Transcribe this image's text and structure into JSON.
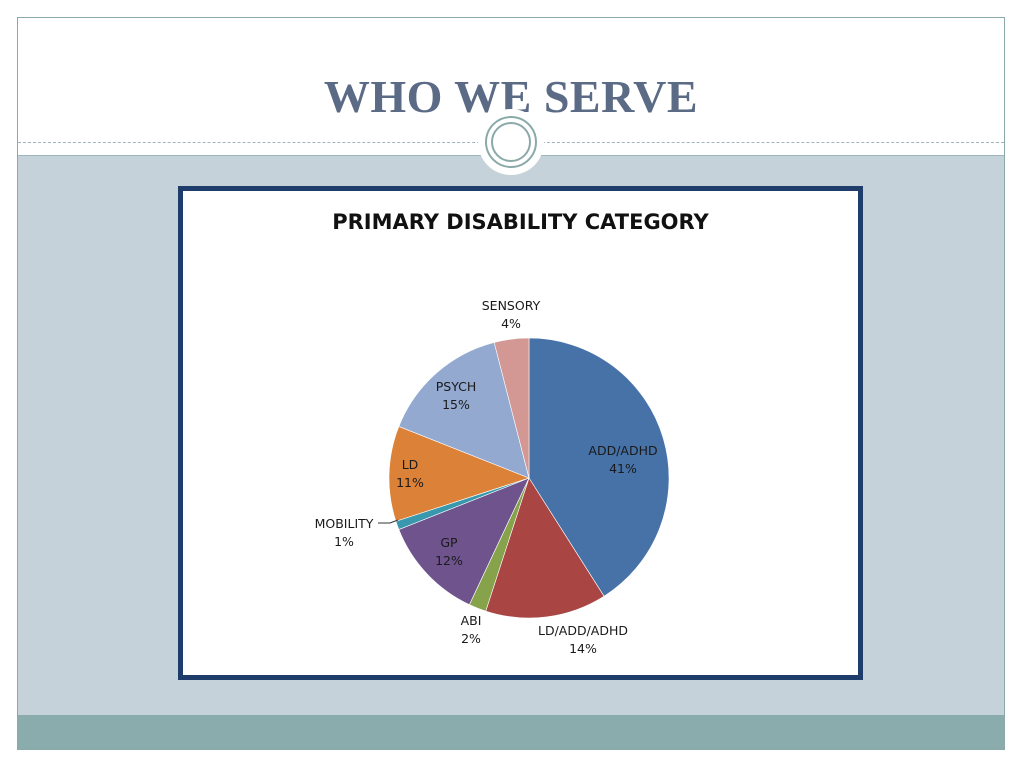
{
  "slide": {
    "title": "WHO WE SERVE"
  },
  "colors": {
    "title": "#5b6a85",
    "content_bg": "#c5d2d9",
    "footer": "#8bacac",
    "chart_border": "#1f3d6b"
  },
  "chart_data": {
    "type": "pie",
    "title": "PRIMARY DISABILITY CATEGORY",
    "legend": "none",
    "categories": [
      "ADD/ADHD",
      "LD/ADD/ADHD",
      "ABI",
      "GP",
      "MOBILITY",
      "LD",
      "PSYCH",
      "SENSORY"
    ],
    "values": [
      41,
      14,
      2,
      12,
      1,
      11,
      15,
      4
    ],
    "value_labels": [
      "41%",
      "14%",
      "2%",
      "12%",
      "1%",
      "11%",
      "15%",
      "4%"
    ],
    "colors": [
      "#4672a8",
      "#a94542",
      "#86a24a",
      "#6e538d",
      "#3a98ae",
      "#db8238",
      "#93a9d0",
      "#d39794"
    ]
  }
}
